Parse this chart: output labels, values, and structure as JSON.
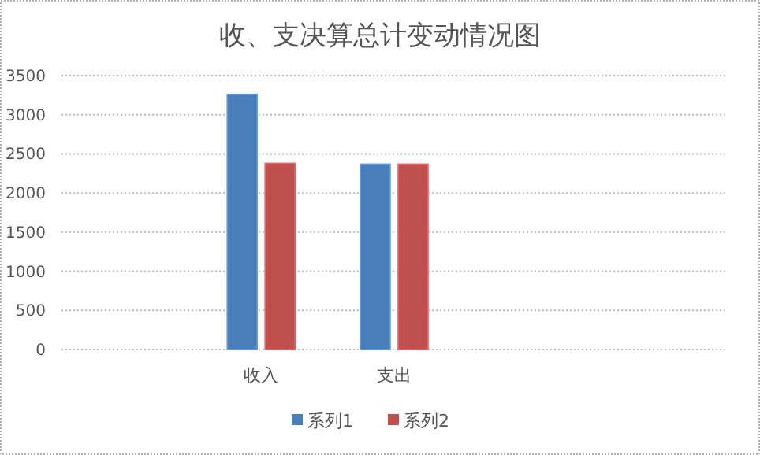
{
  "chart_data": {
    "type": "bar",
    "title": "收、支决算总计变动情况图",
    "categories": [
      null,
      "收入",
      "支出",
      null,
      null
    ],
    "series": [
      {
        "name": "系列1",
        "color": "#4a7ebb",
        "values": [
          null,
          3260,
          2370,
          null,
          null
        ]
      },
      {
        "name": "系列2",
        "color": "#c0504d",
        "values": [
          null,
          2380,
          2370,
          null,
          null
        ]
      }
    ],
    "ylim": [
      0,
      3500
    ],
    "yticks": [
      0,
      500,
      1000,
      1500,
      2000,
      2500,
      3000,
      3500
    ],
    "grid": "y",
    "legend": "bottom"
  }
}
